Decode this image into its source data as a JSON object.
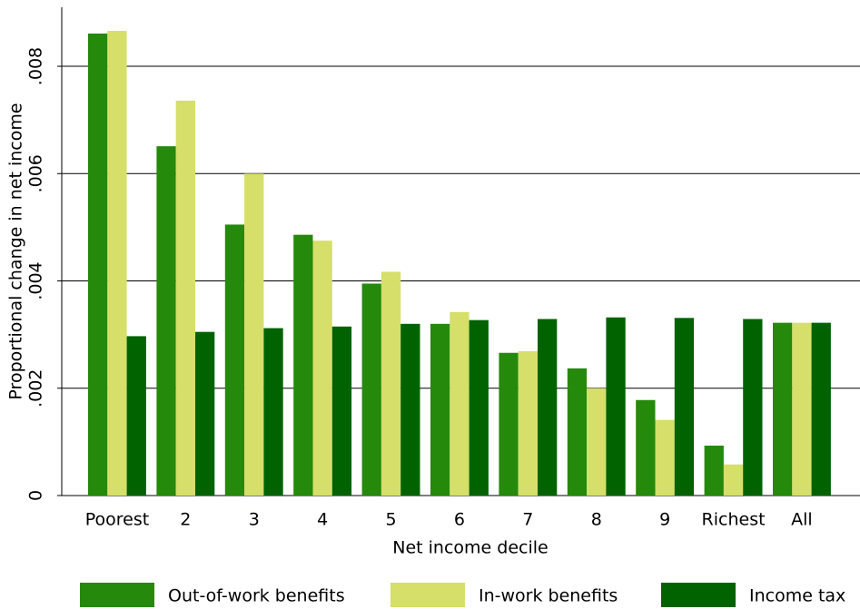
{
  "chart_data": {
    "type": "bar",
    "x_label": "Net income decile",
    "y_label": "Proportional change in net income",
    "categories": [
      "Poorest",
      "2",
      "3",
      "4",
      "5",
      "6",
      "7",
      "8",
      "9",
      "Richest",
      "All"
    ],
    "series": [
      {
        "name": "Out-of-work benefits",
        "color": "#25890c",
        "values": [
          0.00861,
          0.00651,
          0.00505,
          0.00486,
          0.00395,
          0.0032,
          0.00266,
          0.00237,
          0.00178,
          0.00093,
          0.00322
        ]
      },
      {
        "name": "In-work benefits",
        "color": "#d5df6a",
        "values": [
          0.00866,
          0.00736,
          0.006,
          0.00475,
          0.00417,
          0.00342,
          0.00269,
          0.002,
          0.00141,
          0.00058,
          0.00322
        ]
      },
      {
        "name": "Income tax",
        "color": "#006300",
        "values": [
          0.00297,
          0.00305,
          0.00312,
          0.00315,
          0.0032,
          0.00327,
          0.00329,
          0.00332,
          0.00331,
          0.00329,
          0.00322
        ]
      }
    ],
    "ylim": [
      0,
      0.0091
    ],
    "yticks": [
      0,
      {
        "value": 0.002,
        "label": ".002"
      },
      {
        "value": 0.004,
        "label": ".004"
      },
      {
        "value": 0.006,
        "label": ".006"
      },
      {
        "value": 0.008,
        "label": ".008"
      }
    ],
    "grid": true
  }
}
